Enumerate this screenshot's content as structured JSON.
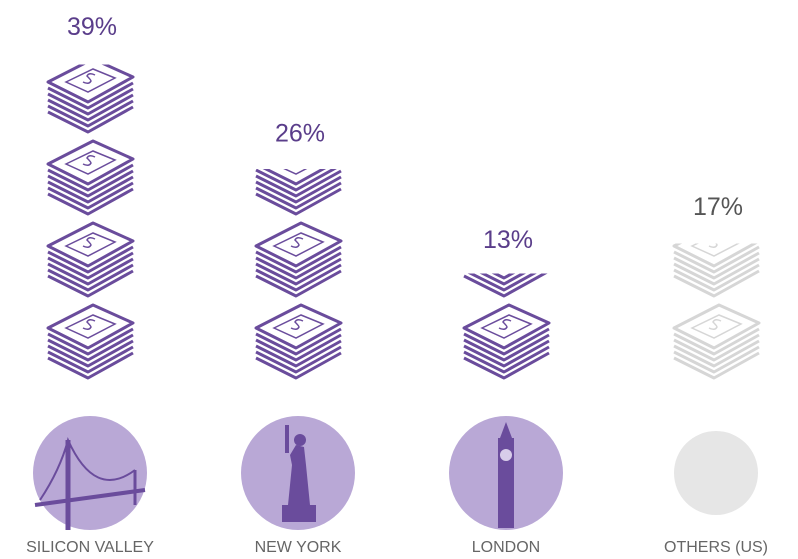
{
  "chart_data": {
    "type": "pictograph",
    "categories": [
      "SILICON VALLEY",
      "NEW YORK",
      "LONDON",
      "OTHERS (US)"
    ],
    "values": [
      39,
      26,
      13,
      17
    ],
    "value_labels": [
      "39%",
      "26%",
      "13%",
      "17%"
    ],
    "colors": [
      "#6a4c9c",
      "#6a4c9c",
      "#6a4c9c",
      "#d6d6d6"
    ],
    "label_colors": [
      "#5a3d8a",
      "#5a3d8a",
      "#5a3d8a",
      "#555555"
    ]
  }
}
